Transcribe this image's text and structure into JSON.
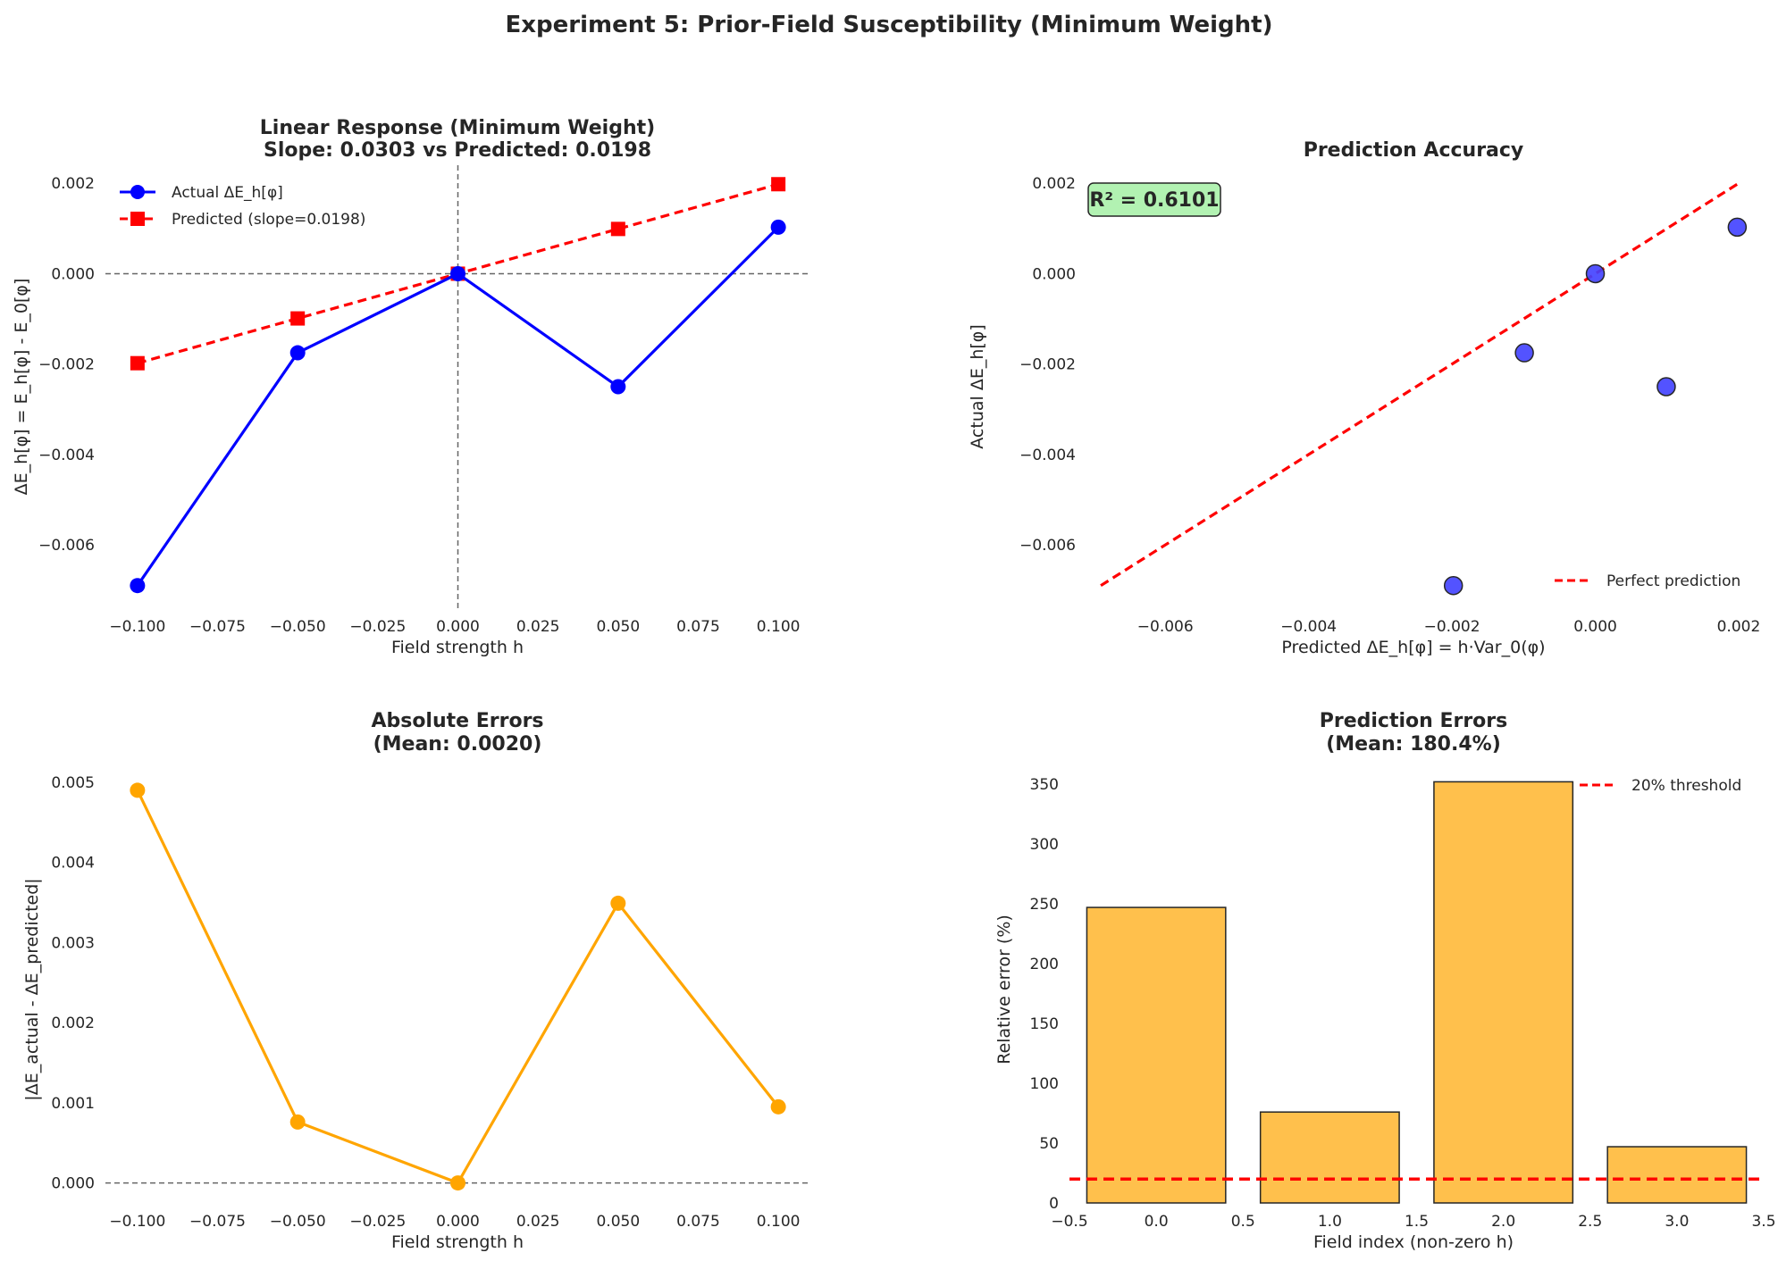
{
  "figure": {
    "suptitle": "Experiment 5: Prior-Field Susceptibility (Minimum Weight)"
  },
  "chart_data": [
    {
      "type": "line",
      "title_line1": "Linear Response (Minimum Weight)",
      "title_line2": "Slope: 0.0303 vs Predicted: 0.0198",
      "xlabel": "Field strength h",
      "ylabel": "ΔE_h[φ] = E_h[φ] - E_0[φ]",
      "xlim": [
        -0.11,
        0.11
      ],
      "ylim": [
        -0.0074,
        0.0024
      ],
      "xticks": [
        -0.1,
        -0.075,
        -0.05,
        -0.025,
        0.0,
        0.025,
        0.05,
        0.075,
        0.1
      ],
      "xtick_labels": [
        "−0.100",
        "−0.075",
        "−0.050",
        "−0.025",
        "0.000",
        "0.025",
        "0.050",
        "0.075",
        "0.100"
      ],
      "yticks": [
        -0.006,
        -0.004,
        -0.002,
        0.0,
        0.002
      ],
      "ytick_labels": [
        "−0.006",
        "−0.004",
        "−0.002",
        "0.000",
        "0.002"
      ],
      "x": [
        -0.1,
        -0.05,
        0.0,
        0.05,
        0.1
      ],
      "series": [
        {
          "name": "Actual ΔE_h[φ]",
          "color": "#0000ff",
          "marker": "circle",
          "linestyle": "solid",
          "values": [
            -0.0069,
            -0.00175,
            0.0,
            -0.0025,
            0.00103
          ]
        },
        {
          "name": "Predicted (slope=0.0198)",
          "color": "#ff0000",
          "marker": "square",
          "linestyle": "dashed",
          "values": [
            -0.00198,
            -0.00099,
            0.0,
            0.00099,
            0.00198
          ]
        }
      ],
      "hline": 0.0,
      "vline": 0.0,
      "legend": "upper-left"
    },
    {
      "type": "scatter",
      "title_line1": "Prediction Accuracy",
      "xlabel": "Predicted ΔE_h[φ] = h·Var_0(φ)",
      "ylabel": "Actual ΔE_h[φ]",
      "xlim": [
        -0.0071,
        0.0022
      ],
      "ylim": [
        -0.0074,
        0.0024
      ],
      "xticks": [
        -0.006,
        -0.004,
        -0.002,
        0.0,
        0.002
      ],
      "xtick_labels": [
        "−0.006",
        "−0.004",
        "−0.002",
        "0.000",
        "0.002"
      ],
      "yticks": [
        -0.006,
        -0.004,
        -0.002,
        0.0,
        0.002
      ],
      "ytick_labels": [
        "−0.006",
        "−0.004",
        "−0.002",
        "0.000",
        "0.002"
      ],
      "points_x": [
        -0.00198,
        -0.00099,
        0.0,
        0.00099,
        0.00198
      ],
      "points_y": [
        -0.0069,
        -0.00175,
        0.0,
        -0.0025,
        0.00103
      ],
      "point_color": "#4040ff",
      "reference_line": {
        "name": "Perfect prediction",
        "from": -0.0069,
        "to": 0.00198,
        "color": "#ff0000"
      },
      "annotation": "R² = 0.6101",
      "annotation_color": "#b2f2b2",
      "legend": "lower-right"
    },
    {
      "type": "line",
      "title_line1": "Absolute Errors",
      "title_line2": "(Mean: 0.0020)",
      "xlabel": "Field strength h",
      "ylabel": "|ΔE_actual - ΔE_predicted|",
      "xlim": [
        -0.11,
        0.11
      ],
      "ylim": [
        -0.00025,
        0.0052
      ],
      "xticks": [
        -0.1,
        -0.075,
        -0.05,
        -0.025,
        0.0,
        0.025,
        0.05,
        0.075,
        0.1
      ],
      "xtick_labels": [
        "−0.100",
        "−0.075",
        "−0.050",
        "−0.025",
        "0.000",
        "0.025",
        "0.050",
        "0.075",
        "0.100"
      ],
      "yticks": [
        0.0,
        0.001,
        0.002,
        0.003,
        0.004,
        0.005
      ],
      "ytick_labels": [
        "0.000",
        "0.001",
        "0.002",
        "0.003",
        "0.004",
        "0.005"
      ],
      "x": [
        -0.1,
        -0.05,
        0.0,
        0.05,
        0.1
      ],
      "series": [
        {
          "name": "Absolute error",
          "color": "#ffa500",
          "marker": "circle",
          "linestyle": "solid",
          "values": [
            0.0049,
            0.00076,
            0.0,
            0.00349,
            0.00095
          ]
        }
      ],
      "hline": 0.0
    },
    {
      "type": "bar",
      "title_line1": "Prediction Errors",
      "title_line2": "(Mean: 180.4%)",
      "xlabel": "Field index (non-zero h)",
      "ylabel": "Relative error (%)",
      "xlim": [
        -0.5,
        3.5
      ],
      "ylim": [
        0,
        365
      ],
      "xticks": [
        -0.5,
        0.0,
        0.5,
        1.0,
        1.5,
        2.0,
        2.5,
        3.0,
        3.5
      ],
      "xtick_labels": [
        "−0.5",
        "0.0",
        "0.5",
        "1.0",
        "1.5",
        "2.0",
        "2.5",
        "3.0",
        "3.5"
      ],
      "yticks": [
        0,
        50,
        100,
        150,
        200,
        250,
        300,
        350
      ],
      "ytick_labels": [
        "0",
        "50",
        "100",
        "150",
        "200",
        "250",
        "300",
        "350"
      ],
      "categories": [
        0,
        1,
        2,
        3
      ],
      "values": [
        247,
        76,
        352,
        47
      ],
      "bar_color": "#ffa500",
      "threshold": {
        "name": "20% threshold",
        "value": 20,
        "color": "#ff0000"
      },
      "legend": "upper-right"
    }
  ]
}
